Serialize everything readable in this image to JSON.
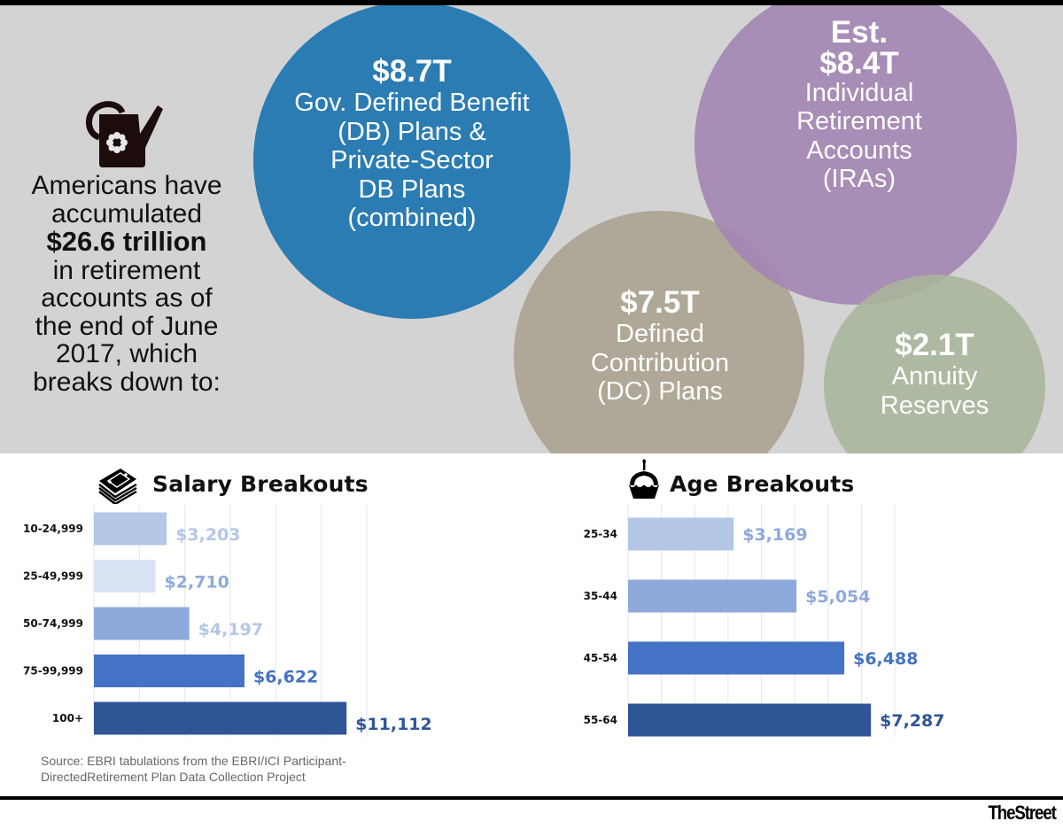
{
  "intro": {
    "line1": "Americans have",
    "line2": "accumulated",
    "highlight": "$26.6 trillion",
    "line3": "in retirement",
    "line4": "accounts as of",
    "line5": "the end of June",
    "line6": "2017, which",
    "line7": "breaks down to:"
  },
  "icons": {
    "hero": "watering-can-icon",
    "salary": "money-stack-icon",
    "age": "cupcake-icon"
  },
  "circles": [
    {
      "name": "db-plans",
      "amount": "$8.7T",
      "label_lines": [
        "Gov. Defined Benefit",
        "(DB) Plans &",
        "Private-Sector",
        "DB Plans",
        "(combined)"
      ],
      "color": "#2a7cb3"
    },
    {
      "name": "iras",
      "prefix": "Est.",
      "amount": "$8.4T",
      "label_lines": [
        "Individual",
        "Retirement",
        "Accounts",
        "(IRAs)"
      ],
      "color": "#a487b3"
    },
    {
      "name": "dc-plans",
      "amount": "$7.5T",
      "label_lines": [
        "Defined",
        "Contribution",
        "(DC) Plans"
      ],
      "color": "#a89f8c"
    },
    {
      "name": "annuity",
      "amount": "$2.1T",
      "label_lines": [
        "Annuity",
        "Reserves"
      ],
      "color": "#a8b59b"
    }
  ],
  "chart_data": [
    {
      "type": "bar",
      "orientation": "horizontal",
      "title": "Salary Breakouts",
      "categories": [
        "10-24,999",
        "25-49,999",
        "50-74,999",
        "75-99,999",
        "100+"
      ],
      "values": [
        3203,
        2710,
        4197,
        6622,
        11112
      ],
      "value_labels": [
        "$3,203",
        "$2,710",
        "$4,197",
        "$6,622",
        "$11,112"
      ],
      "colors": [
        "#b4c7e7",
        "#d9e2f3",
        "#8eaadb",
        "#4472c4",
        "#2f5597"
      ],
      "label_colors": [
        "#b4c7e7",
        "#8eaadb",
        "#b4c7e7",
        "#4472c4",
        "#2f5597"
      ],
      "xlim": [
        0,
        12000
      ],
      "grid_step": 2000,
      "grid": true,
      "xlabel": "",
      "ylabel": ""
    },
    {
      "type": "bar",
      "orientation": "horizontal",
      "title": "Age Breakouts",
      "categories": [
        "25-34",
        "35-44",
        "45-54",
        "55-64"
      ],
      "values": [
        3169,
        5054,
        6488,
        7287
      ],
      "value_labels": [
        "$3,169",
        "$5,054",
        "$6,488",
        "$7,287"
      ],
      "colors": [
        "#b4c7e7",
        "#8eaadb",
        "#4472c4",
        "#2f5597"
      ],
      "label_colors": [
        "#8eaadb",
        "#8eaadb",
        "#4472c4",
        "#2f5597"
      ],
      "xlim": [
        0,
        8000
      ],
      "grid_step": 1000,
      "grid": true,
      "xlabel": "",
      "ylabel": ""
    }
  ],
  "source": {
    "line1": "Source: EBRI tabulations from the EBRI/ICI Participant-",
    "line2": "DirectedRetirement Plan Data Collection Project"
  },
  "brand": "TheStreet"
}
